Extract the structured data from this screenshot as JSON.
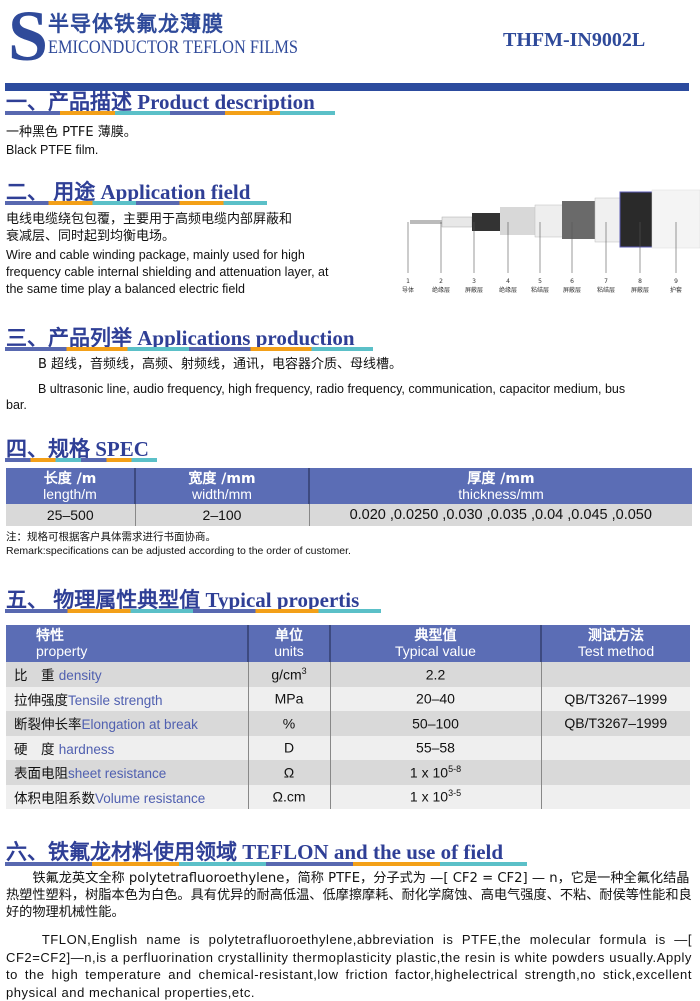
{
  "header": {
    "logo_letter": "S",
    "title_cn": "半导体铁氟龙薄膜",
    "title_en": "EMICONDUCTOR TEFLON FILMS",
    "model": "THFM-IN9002L"
  },
  "colors": {
    "brand_blue": "#2f4a9a",
    "table_header": "#5b6db5",
    "underline": [
      "#5868b0",
      "#f3a018",
      "#5bc0c8"
    ]
  },
  "s1": {
    "heading": "一、产品描述 Product description",
    "cn": "一种黑色 PTFE 薄膜。",
    "en": "Black PTFE film."
  },
  "s2": {
    "heading": "二、 用途 Application field",
    "cn": [
      "电线电缆绕包包覆，主要用于高频电缆内部屏蔽和",
      "衰减层、同时起到均衡电场。"
    ],
    "en": [
      "Wire and cable winding package, mainly used for high",
      "frequency cable internal shielding and attenuation layer, at",
      "the same time play a balanced electric field"
    ],
    "cable_layers": [
      {
        "n": "1",
        "label": "导体"
      },
      {
        "n": "2",
        "label": "绝缘层"
      },
      {
        "n": "3",
        "label": "屏蔽层"
      },
      {
        "n": "4",
        "label": "绝缘层"
      },
      {
        "n": "5",
        "label": "粘结层"
      },
      {
        "n": "6",
        "label": "屏蔽层"
      },
      {
        "n": "7",
        "label": "粘结层"
      },
      {
        "n": "8",
        "label": "屏蔽层"
      },
      {
        "n": "9",
        "label": "护套"
      }
    ]
  },
  "s3": {
    "heading": "三、产品列举 Applications production",
    "cn": "B 超线，音频线，高频、射频线，通讯，电容器介质、母线槽。",
    "en1": "B ultrasonic line, audio frequency, high frequency, radio frequency, communication, capacitor medium, bus",
    "en2": "bar."
  },
  "s4": {
    "heading": "四、规格 SPEC",
    "cols": [
      {
        "cn": "长度 /m",
        "en": "length/m"
      },
      {
        "cn": "宽度 /mm",
        "en": "width/mm"
      },
      {
        "cn": "厚度 /mm",
        "en": "thickness/mm"
      }
    ],
    "row": [
      "25–500",
      "2–100",
      "0.020 ,0.0250 ,0.030 ,0.035 ,0.04 ,0.045 ,0.050"
    ],
    "note_cn": "注：规格可根据客户具体需求进行书面协商。",
    "note_en": "Remark:specifications can be adjusted according to the order of customer."
  },
  "s5": {
    "heading": "五、 物理属性典型值 Typical propertis",
    "cols": [
      {
        "cn": "特性",
        "en": "property"
      },
      {
        "cn": "单位",
        "en": "units"
      },
      {
        "cn": "典型值",
        "en": "Typical value"
      },
      {
        "cn": "测试方法",
        "en": "Test method"
      }
    ],
    "rows": [
      {
        "cn": "比　重 ",
        "en": "density",
        "unit": "g/cm",
        "unit_sup": "3",
        "value": "2.2",
        "value_sup": "",
        "method": ""
      },
      {
        "cn": "拉伸强度",
        "en": "Tensile strength",
        "unit": "MPa",
        "unit_sup": "",
        "value": "20–40",
        "value_sup": "",
        "method": "QB/T3267–1999"
      },
      {
        "cn": "断裂伸长率",
        "en": "Elongation at break",
        "unit": "%",
        "unit_sup": "",
        "value": "50–100",
        "value_sup": "",
        "method": "QB/T3267–1999"
      },
      {
        "cn": "硬　度 ",
        "en": "hardness",
        "unit": "D",
        "unit_sup": "",
        "value": "55–58",
        "value_sup": "",
        "method": ""
      },
      {
        "cn": "表面电阻",
        "en": "sheet resistance",
        "unit": "Ω",
        "unit_sup": "",
        "value": "1 x 10",
        "value_sup": "5-8",
        "method": ""
      },
      {
        "cn": "体积电阻系数",
        "en": "Volume resistance",
        "unit": "Ω.cm",
        "unit_sup": "",
        "value": "1 x 10",
        "value_sup": "3-5",
        "method": ""
      }
    ]
  },
  "s6": {
    "heading": "六、铁氟龙材料使用领域 TEFLON and the use of field",
    "cn": "　　铁氟龙英文全称 polytetrafluoroethylene，简称 PTFE，分子式为 —[ CF2 = CF2] — n，它是一种全氟化结晶热塑性塑料，树脂本色为白色。具有优异的耐高低温、低摩擦摩耗、耐化学腐蚀、高电气强度、不粘、耐侯等性能和良好的物理机械性能。",
    "en": "　　TFLON,English name is polytetrafluoroethylene,abbreviation is PTFE,the molecular formula is —[ CF2=CF2]—n,is a perfluorination crystallinity thermoplasticity plastic,the resin is white powders usually.Apply to the high temperature and chemical-resistant,low friction factor,highelectrical strength,no stick,excellent  physical and mechanical properties,etc."
  }
}
